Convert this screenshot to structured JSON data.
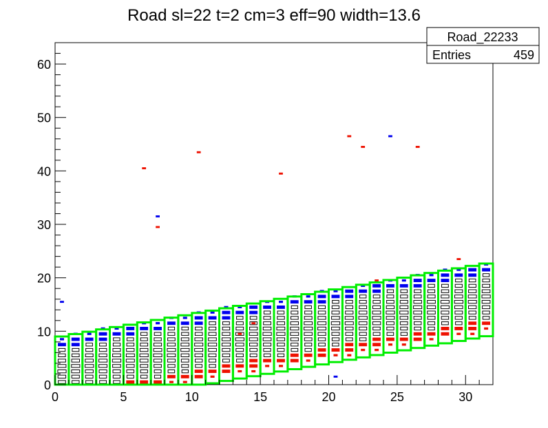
{
  "chart_data": {
    "type": "heatmap",
    "title": "Road sl=22 t=2 cm=3 eff=90 width=13.6",
    "xlabel": "",
    "ylabel": "",
    "xlim": [
      0,
      32
    ],
    "ylim": [
      0,
      64
    ],
    "x_ticks": [
      "0",
      "5",
      "10",
      "15",
      "20",
      "25",
      "30"
    ],
    "y_ticks": [
      "0",
      "10",
      "20",
      "30",
      "40",
      "50",
      "60"
    ],
    "stats_box": {
      "name": "Road_22233",
      "entries_label": "Entries",
      "entries_value": "459"
    },
    "road": {
      "slope": 0.44,
      "offset": 2.0,
      "half_width": 6.8,
      "color": "#00ee00"
    },
    "colors": {
      "upper_edge": "#0000ee",
      "lower_edge": "#ee1100",
      "core": "#000000",
      "road": "#00ee00"
    },
    "outliers": [
      {
        "x": 0.5,
        "y": 15.5,
        "c": "blue"
      },
      {
        "x": 6.5,
        "y": 40.5,
        "c": "red"
      },
      {
        "x": 7.5,
        "y": 31.5,
        "c": "blue"
      },
      {
        "x": 7.5,
        "y": 29.5,
        "c": "red"
      },
      {
        "x": 10.5,
        "y": 43.5,
        "c": "red"
      },
      {
        "x": 16.5,
        "y": 39.5,
        "c": "red"
      },
      {
        "x": 21.5,
        "y": 46.5,
        "c": "red"
      },
      {
        "x": 22.5,
        "y": 44.5,
        "c": "red"
      },
      {
        "x": 24.5,
        "y": 46.5,
        "c": "blue"
      },
      {
        "x": 26.5,
        "y": 44.5,
        "c": "red"
      },
      {
        "x": 20.5,
        "y": 1.5,
        "c": "blue"
      },
      {
        "x": 23.5,
        "y": 19.5,
        "c": "red"
      },
      {
        "x": 29.5,
        "y": 23.5,
        "c": "red"
      },
      {
        "x": 13.5,
        "y": 9.5,
        "c": "red"
      },
      {
        "x": 14.5,
        "y": 11.5,
        "c": "red"
      }
    ]
  }
}
